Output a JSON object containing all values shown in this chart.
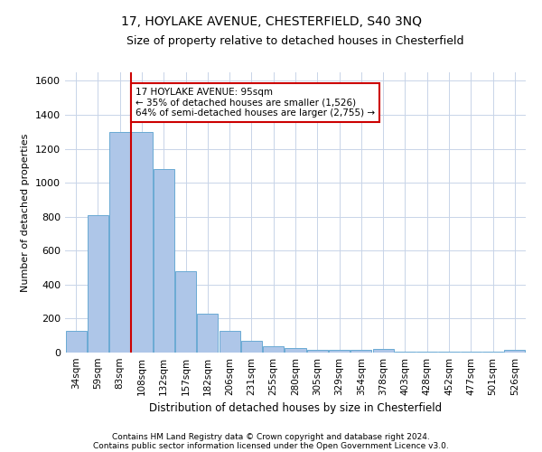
{
  "title1": "17, HOYLAKE AVENUE, CHESTERFIELD, S40 3NQ",
  "title2": "Size of property relative to detached houses in Chesterfield",
  "xlabel": "Distribution of detached houses by size in Chesterfield",
  "ylabel": "Number of detached properties",
  "categories": [
    "34sqm",
    "59sqm",
    "83sqm",
    "108sqm",
    "132sqm",
    "157sqm",
    "182sqm",
    "206sqm",
    "231sqm",
    "255sqm",
    "280sqm",
    "305sqm",
    "329sqm",
    "354sqm",
    "378sqm",
    "403sqm",
    "428sqm",
    "452sqm",
    "477sqm",
    "501sqm",
    "526sqm"
  ],
  "values": [
    130,
    810,
    1300,
    1300,
    1080,
    480,
    230,
    130,
    70,
    35,
    25,
    15,
    15,
    15,
    20,
    5,
    5,
    5,
    5,
    5,
    15
  ],
  "bar_color": "#aec6e8",
  "bar_edge_color": "#6aaad4",
  "vline_color": "#cc0000",
  "vline_index": 2.5,
  "annotation_text": "17 HOYLAKE AVENUE: 95sqm\n← 35% of detached houses are smaller (1,526)\n64% of semi-detached houses are larger (2,755) →",
  "annotation_box_color": "#ffffff",
  "annotation_box_edge_color": "#cc0000",
  "ylim": [
    0,
    1650
  ],
  "yticks": [
    0,
    200,
    400,
    600,
    800,
    1000,
    1200,
    1400,
    1600
  ],
  "footer1": "Contains HM Land Registry data © Crown copyright and database right 2024.",
  "footer2": "Contains public sector information licensed under the Open Government Licence v3.0.",
  "bg_color": "#ffffff",
  "grid_color": "#c8d4e8",
  "title_fontsize": 10,
  "subtitle_fontsize": 9,
  "footer_fontsize": 6.5
}
